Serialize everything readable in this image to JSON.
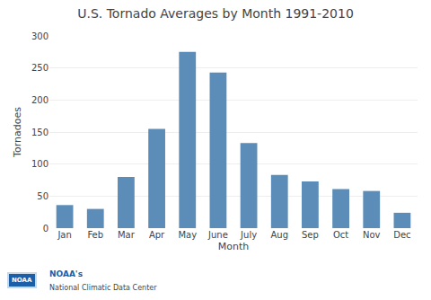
{
  "chart_data": {
    "type": "bar",
    "title": "U.S. Tornado Averages by Month 1991-2010",
    "xlabel": "Month",
    "ylabel": "Tornadoes",
    "categories": [
      "Jan",
      "Feb",
      "Mar",
      "Apr",
      "May",
      "June",
      "July",
      "Aug",
      "Sep",
      "Oct",
      "Nov",
      "Dec"
    ],
    "values": [
      36,
      30,
      80,
      155,
      275,
      243,
      133,
      83,
      73,
      61,
      58,
      24
    ],
    "color": "#5b8db8",
    "ylim": [
      0,
      300
    ],
    "yticks": [
      0,
      50,
      100,
      150,
      200,
      250,
      300
    ],
    "grid": true,
    "annotations": [
      "NOAA",
      "NOAA's",
      "National Climatic Data Center"
    ]
  }
}
